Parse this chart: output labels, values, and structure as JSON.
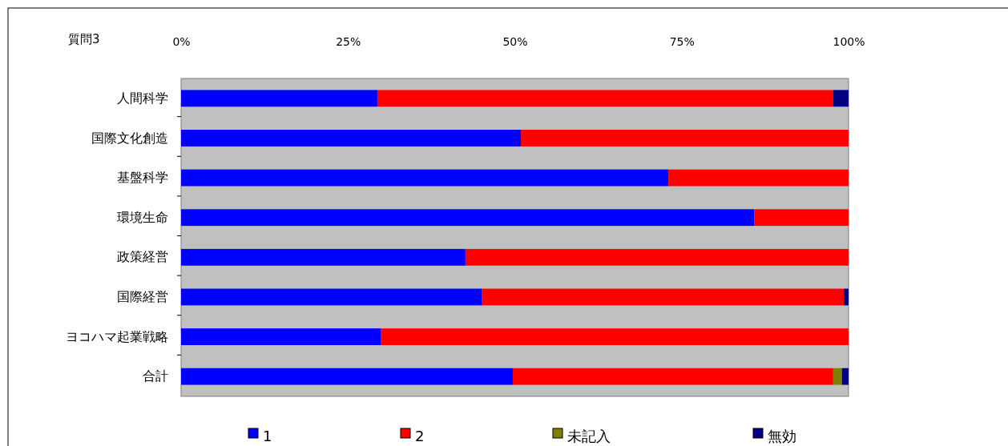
{
  "chart_data": {
    "type": "bar",
    "orientation": "horizontal",
    "stacked": true,
    "title": "質問3",
    "categories": [
      "人間科学",
      "国際文化創造",
      "基盤科学",
      "環境生命",
      "政策経営",
      "国際経営",
      "ヨコハマ起業戦略",
      "合計"
    ],
    "series": [
      {
        "name": "1",
        "color": "#0000ff",
        "values": [
          29.4,
          50.9,
          73.0,
          85.9,
          42.6,
          45.1,
          29.9,
          49.7
        ]
      },
      {
        "name": "2",
        "color": "#ff0000",
        "values": [
          68.3,
          49.1,
          27.0,
          14.1,
          57.4,
          54.2,
          70.1,
          48.0
        ]
      },
      {
        "name": "未記入",
        "color": "#808000",
        "values": [
          0,
          0,
          0,
          0,
          0,
          0,
          0,
          1.3
        ]
      },
      {
        "name": "無効",
        "color": "#000080",
        "values": [
          2.3,
          0,
          0,
          0,
          0,
          0.7,
          0,
          1.0
        ]
      }
    ],
    "xlim": [
      0,
      100
    ],
    "xticks": [
      {
        "value": 0,
        "label": "0%"
      },
      {
        "value": 25,
        "label": "25%"
      },
      {
        "value": 50,
        "label": "50%"
      },
      {
        "value": 75,
        "label": "75%"
      },
      {
        "value": 100,
        "label": "100%"
      }
    ],
    "grid": false,
    "legend": "bottom"
  }
}
